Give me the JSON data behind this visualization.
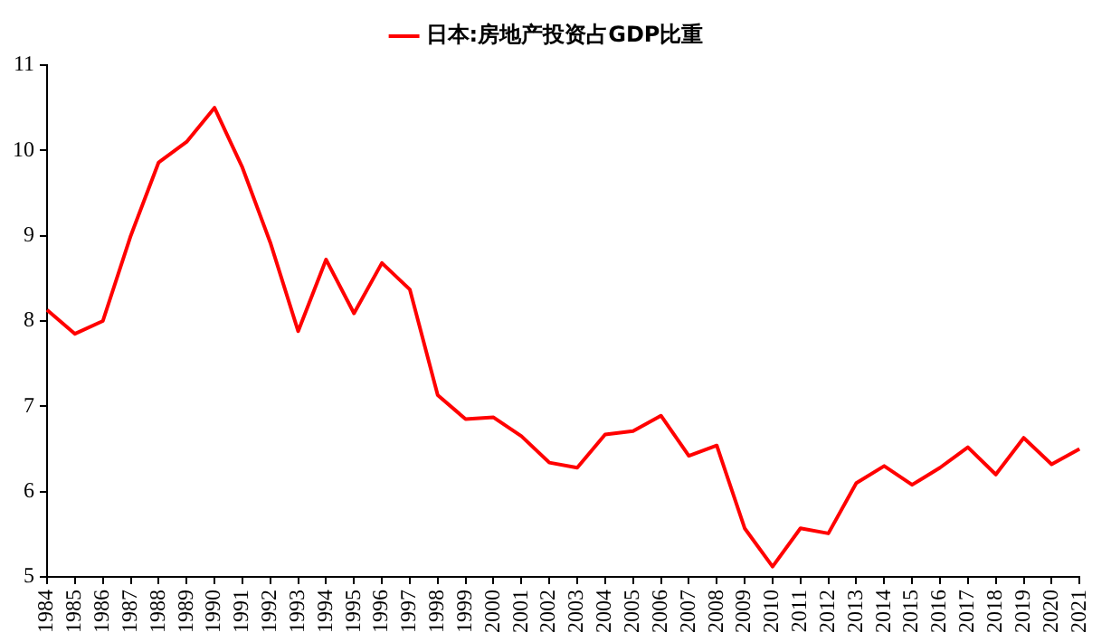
{
  "chart_data": {
    "type": "line",
    "categories": [
      "1984",
      "1985",
      "1986",
      "1987",
      "1988",
      "1989",
      "1990",
      "1991",
      "1992",
      "1993",
      "1994",
      "1995",
      "1996",
      "1997",
      "1998",
      "1999",
      "2000",
      "2001",
      "2002",
      "2003",
      "2004",
      "2005",
      "2006",
      "2007",
      "2008",
      "2009",
      "2010",
      "2011",
      "2012",
      "2013",
      "2014",
      "2015",
      "2016",
      "2017",
      "2018",
      "2019",
      "2020",
      "2021"
    ],
    "series": [
      {
        "name": "日本:房地产投资占GDP比重",
        "color": "#ff0000",
        "values": [
          8.13,
          7.85,
          8.0,
          9.0,
          9.86,
          10.1,
          10.5,
          9.8,
          8.92,
          7.88,
          8.72,
          8.09,
          8.68,
          8.37,
          7.13,
          6.85,
          6.87,
          6.65,
          6.34,
          6.28,
          6.67,
          6.71,
          6.89,
          6.42,
          6.54,
          5.57,
          5.12,
          5.57,
          5.51,
          6.1,
          6.3,
          6.08,
          6.28,
          6.52,
          6.2,
          6.63,
          6.32,
          6.5
        ]
      }
    ],
    "ylim": [
      5,
      11
    ],
    "yticks": [
      5,
      6,
      7,
      8,
      9,
      10,
      11
    ],
    "grid": false,
    "legend": "top",
    "marker": "none",
    "line_style": "solid"
  }
}
